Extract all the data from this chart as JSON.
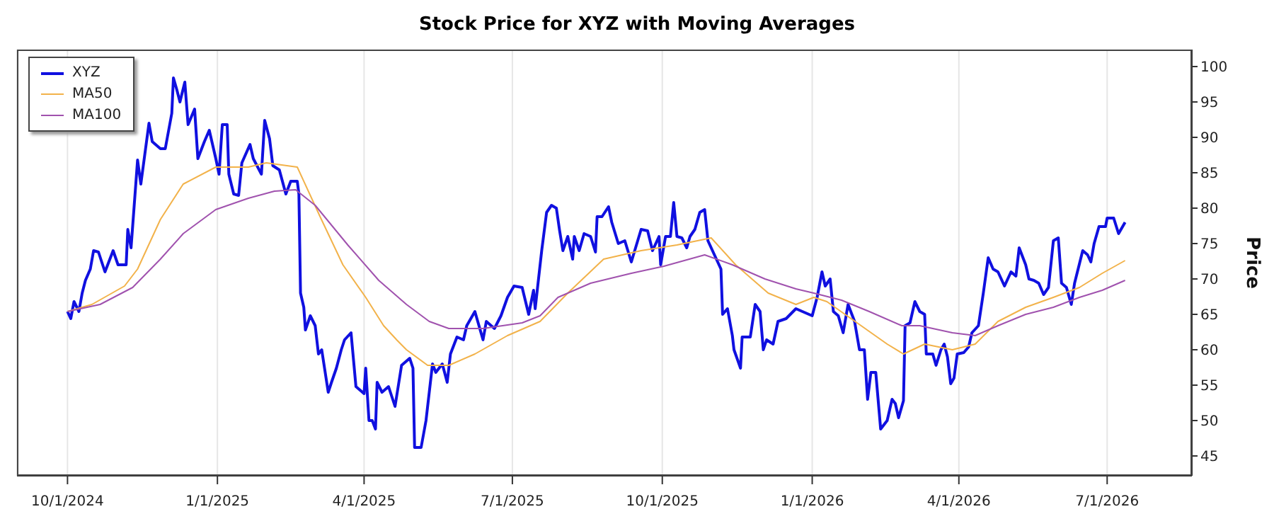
{
  "chart_data": {
    "type": "line",
    "title": "Stock Price for XYZ with Moving Averages",
    "ylabel": "Price",
    "xlim": [
      "2024-08-31",
      "2026-08-22"
    ],
    "ylim": [
      42.2,
      102.4
    ],
    "xticks": [
      {
        "value": "2024-10-01",
        "label": "10/1/2024"
      },
      {
        "value": "2025-01-01",
        "label": "1/1/2025"
      },
      {
        "value": "2025-04-01",
        "label": "4/1/2025"
      },
      {
        "value": "2025-07-01",
        "label": "7/1/2025"
      },
      {
        "value": "2025-10-01",
        "label": "10/1/2025"
      },
      {
        "value": "2026-01-01",
        "label": "1/1/2026"
      },
      {
        "value": "2026-04-01",
        "label": "4/1/2026"
      },
      {
        "value": "2026-07-01",
        "label": "7/1/2026"
      }
    ],
    "yticks": [
      45,
      50,
      55,
      60,
      65,
      70,
      75,
      80,
      85,
      90,
      95,
      100
    ],
    "grid": "x",
    "legend": "top left",
    "marker": "none",
    "line_style": "solid",
    "series": [
      {
        "name": "XYZ",
        "color": "#1010e0",
        "x": [
          "2024-10-01",
          "2024-10-03",
          "2024-10-05",
          "2024-10-08",
          "2024-10-10",
          "2024-10-12",
          "2024-10-15",
          "2024-10-17",
          "2024-10-20",
          "2024-10-24",
          "2024-10-29",
          "2024-11-01",
          "2024-11-06",
          "2024-11-07",
          "2024-11-09",
          "2024-11-13",
          "2024-11-15",
          "2024-11-20",
          "2024-11-22",
          "2024-11-27",
          "2024-11-30",
          "2024-12-04",
          "2024-12-05",
          "2024-12-07",
          "2024-12-09",
          "2024-12-12",
          "2024-12-14",
          "2024-12-18",
          "2024-12-20",
          "2024-12-24",
          "2024-12-27",
          "2024-12-31",
          "2025-01-02",
          "2025-01-04",
          "2025-01-07",
          "2025-01-08",
          "2025-01-11",
          "2025-01-14",
          "2025-01-16",
          "2025-01-21",
          "2025-01-23",
          "2025-01-28",
          "2025-01-30",
          "2025-02-02",
          "2025-02-04",
          "2025-02-08",
          "2025-02-12",
          "2025-02-15",
          "2025-02-19",
          "2025-02-20",
          "2025-02-21",
          "2025-02-23",
          "2025-02-24",
          "2025-02-27",
          "2025-03-02",
          "2025-03-04",
          "2025-03-06",
          "2025-03-10",
          "2025-03-12",
          "2025-03-15",
          "2025-03-18",
          "2025-03-20",
          "2025-03-24",
          "2025-03-27",
          "2025-04-01",
          "2025-04-02",
          "2025-04-04",
          "2025-04-06",
          "2025-04-08",
          "2025-04-09",
          "2025-04-12",
          "2025-04-16",
          "2025-04-20",
          "2025-04-24",
          "2025-04-29",
          "2025-05-01",
          "2025-05-02",
          "2025-05-06",
          "2025-05-09",
          "2025-05-13",
          "2025-05-15",
          "2025-05-19",
          "2025-05-22",
          "2025-05-24",
          "2025-05-28",
          "2025-06-01",
          "2025-06-03",
          "2025-06-08",
          "2025-06-13",
          "2025-06-15",
          "2025-06-20",
          "2025-06-24",
          "2025-06-28",
          "2025-07-02",
          "2025-07-07",
          "2025-07-11",
          "2025-07-14",
          "2025-07-15",
          "2025-07-19",
          "2025-07-22",
          "2025-07-25",
          "2025-07-28",
          "2025-07-30",
          "2025-08-01",
          "2025-08-04",
          "2025-08-07",
          "2025-08-08",
          "2025-08-11",
          "2025-08-14",
          "2025-08-18",
          "2025-08-21",
          "2025-08-22",
          "2025-08-25",
          "2025-08-29",
          "2025-08-31",
          "2025-09-04",
          "2025-09-08",
          "2025-09-12",
          "2025-09-18",
          "2025-09-22",
          "2025-09-25",
          "2025-09-29",
          "2025-09-30",
          "2025-10-03",
          "2025-10-06",
          "2025-10-08",
          "2025-10-10",
          "2025-10-13",
          "2025-10-16",
          "2025-10-18",
          "2025-10-21",
          "2025-10-24",
          "2025-10-27",
          "2025-10-29",
          "2025-11-02",
          "2025-11-06",
          "2025-11-07",
          "2025-11-10",
          "2025-11-13",
          "2025-11-14",
          "2025-11-18",
          "2025-11-19",
          "2025-11-24",
          "2025-11-27",
          "2025-11-30",
          "2025-12-02",
          "2025-12-04",
          "2025-12-08",
          "2025-12-11",
          "2025-12-16",
          "2025-12-22",
          "2025-12-26",
          "2026-01-01",
          "2026-01-04",
          "2026-01-07",
          "2026-01-09",
          "2026-01-12",
          "2026-01-14",
          "2026-01-17",
          "2026-01-20",
          "2026-01-23",
          "2026-01-27",
          "2026-01-30",
          "2026-02-02",
          "2026-02-04",
          "2026-02-06",
          "2026-02-09",
          "2026-02-12",
          "2026-02-16",
          "2026-02-19",
          "2026-02-21",
          "2026-02-23",
          "2026-02-26",
          "2026-02-27",
          "2026-03-02",
          "2026-03-05",
          "2026-03-08",
          "2026-03-11",
          "2026-03-12",
          "2026-03-16",
          "2026-03-18",
          "2026-03-21",
          "2026-03-23",
          "2026-03-25",
          "2026-03-27",
          "2026-03-29",
          "2026-03-31",
          "2026-04-04",
          "2026-04-07",
          "2026-04-09",
          "2026-04-13",
          "2026-04-16",
          "2026-04-19",
          "2026-04-22",
          "2026-04-25",
          "2026-04-29",
          "2026-05-03",
          "2026-05-06",
          "2026-05-08",
          "2026-05-12",
          "2026-05-14",
          "2026-05-17",
          "2026-05-20",
          "2026-05-23",
          "2026-05-26",
          "2026-05-29",
          "2026-06-01",
          "2026-06-03",
          "2026-06-06",
          "2026-06-09",
          "2026-06-11",
          "2026-06-16",
          "2026-06-19",
          "2026-06-21",
          "2026-06-23",
          "2026-06-26",
          "2026-06-30",
          "2026-07-01",
          "2026-07-05",
          "2026-07-08",
          "2026-07-12"
        ],
        "values": [
          65.4,
          64.4,
          66.8,
          65.4,
          68,
          69.8,
          71.4,
          74,
          73.8,
          71,
          74,
          72,
          72,
          77,
          74.4,
          86.8,
          83.4,
          92,
          89.4,
          88.4,
          88.4,
          93.4,
          98.4,
          96.8,
          95,
          97.8,
          91.8,
          94,
          87,
          89.4,
          91,
          87,
          84.8,
          91.8,
          91.8,
          84.8,
          82,
          81.8,
          86.4,
          89,
          87,
          84.8,
          92.4,
          89.8,
          86,
          85.4,
          82,
          83.8,
          83.8,
          82,
          68,
          66,
          62.8,
          64.8,
          63.4,
          59.4,
          60,
          54,
          55.4,
          57.4,
          60,
          61.4,
          62.4,
          54.8,
          53.8,
          57.4,
          50,
          50,
          48.8,
          55.4,
          54,
          54.8,
          52,
          57.8,
          58.8,
          57.4,
          46.2,
          46.2,
          50,
          58,
          56.8,
          58,
          55.4,
          59.4,
          61.8,
          61.4,
          63.4,
          65.4,
          61.4,
          64,
          63,
          64.8,
          67.4,
          69,
          68.8,
          65,
          68.4,
          65.8,
          74,
          79.4,
          80.4,
          80,
          76.8,
          74,
          76,
          72.8,
          76,
          74,
          76.4,
          76,
          73.8,
          78.8,
          78.8,
          80.2,
          78,
          75,
          75.4,
          72.4,
          77,
          76.8,
          74,
          76,
          72,
          76,
          76,
          80.8,
          76,
          75.8,
          74.4,
          76,
          77,
          79.4,
          79.8,
          75.4,
          73.4,
          71.4,
          65,
          65.8,
          62,
          60,
          57.4,
          61.8,
          61.8,
          66.4,
          65.4,
          60,
          61.4,
          60.8,
          64,
          64.4,
          65.8,
          65.4,
          64.8,
          67.4,
          71,
          69,
          70,
          65.4,
          64.8,
          62.4,
          66.4,
          64,
          60,
          60,
          53,
          56.8,
          56.8,
          48.8,
          50,
          53,
          52.4,
          50.4,
          52.8,
          63.4,
          63.8,
          66.8,
          65.4,
          65,
          59.4,
          59.4,
          57.8,
          60,
          60.8,
          59,
          55.2,
          56,
          59.4,
          59.6,
          60.4,
          62.4,
          63.4,
          68,
          73,
          71.4,
          71,
          69,
          71,
          70.4,
          74.4,
          72,
          70,
          69.8,
          69.4,
          67.8,
          68.8,
          75.4,
          75.8,
          69.4,
          68.8,
          66.4,
          69.4,
          74,
          73.4,
          72.4,
          75,
          77.4,
          77.4,
          78.6,
          78.6,
          76.4,
          78
        ]
      },
      {
        "name": "MA50",
        "color": "#f2b24a",
        "x": [
          "2024-10-01",
          "2024-10-16",
          "2024-11-05",
          "2024-11-13",
          "2024-11-27",
          "2024-12-11",
          "2024-12-31",
          "2025-01-20",
          "2025-01-31",
          "2025-02-19",
          "2025-03-05",
          "2025-03-19",
          "2025-04-02",
          "2025-04-13",
          "2025-04-21",
          "2025-04-27",
          "2025-05-10",
          "2025-05-23",
          "2025-06-08",
          "2025-06-28",
          "2025-07-18",
          "2025-08-04",
          "2025-08-26",
          "2025-09-18",
          "2025-10-10",
          "2025-10-31",
          "2025-11-15",
          "2025-12-05",
          "2025-12-22",
          "2026-01-02",
          "2026-01-10",
          "2026-01-31",
          "2026-02-16",
          "2026-02-26",
          "2026-03-11",
          "2026-03-28",
          "2026-04-11",
          "2026-04-25",
          "2026-05-12",
          "2026-05-29",
          "2026-06-14",
          "2026-06-28",
          "2026-07-12"
        ],
        "values": [
          65.4,
          66.4,
          69,
          71.4,
          78.4,
          83.4,
          85.8,
          85.8,
          86.4,
          85.8,
          78.8,
          72,
          67.4,
          63.4,
          61.4,
          60,
          57.8,
          57.8,
          59.4,
          62,
          64,
          68,
          72.8,
          74,
          74.8,
          75.8,
          72,
          68,
          66.4,
          67.4,
          66.8,
          63.4,
          60.8,
          59.4,
          60.8,
          60,
          60.8,
          64,
          66,
          67.4,
          68.8,
          70.8,
          72.6
        ]
      },
      {
        "name": "MA100",
        "color": "#a052ae",
        "x": [
          "2024-10-01",
          "2024-10-21",
          "2024-11-10",
          "2024-11-27",
          "2024-12-11",
          "2024-12-31",
          "2025-01-20",
          "2025-02-05",
          "2025-02-18",
          "2025-03-02",
          "2025-03-22",
          "2025-04-10",
          "2025-04-27",
          "2025-05-11",
          "2025-05-23",
          "2025-06-13",
          "2025-07-07",
          "2025-07-18",
          "2025-07-29",
          "2025-08-18",
          "2025-09-12",
          "2025-10-02",
          "2025-10-27",
          "2025-11-13",
          "2025-12-03",
          "2025-12-22",
          "2026-01-02",
          "2026-01-19",
          "2026-02-05",
          "2026-02-25",
          "2026-03-08",
          "2026-03-28",
          "2026-04-11",
          "2026-04-25",
          "2026-05-12",
          "2026-05-29",
          "2026-06-14",
          "2026-06-28",
          "2026-07-12"
        ],
        "values": [
          65.4,
          66.4,
          68.8,
          72.8,
          76.4,
          79.8,
          81.4,
          82.4,
          82.6,
          80.4,
          74.8,
          69.8,
          66.4,
          64,
          63,
          63,
          63.8,
          64.8,
          67.4,
          69.4,
          70.8,
          71.8,
          73.4,
          72,
          70,
          68.6,
          68,
          67,
          65.4,
          63.4,
          63.4,
          62.4,
          62,
          63.4,
          65,
          66,
          67.4,
          68.4,
          69.8
        ]
      }
    ]
  }
}
